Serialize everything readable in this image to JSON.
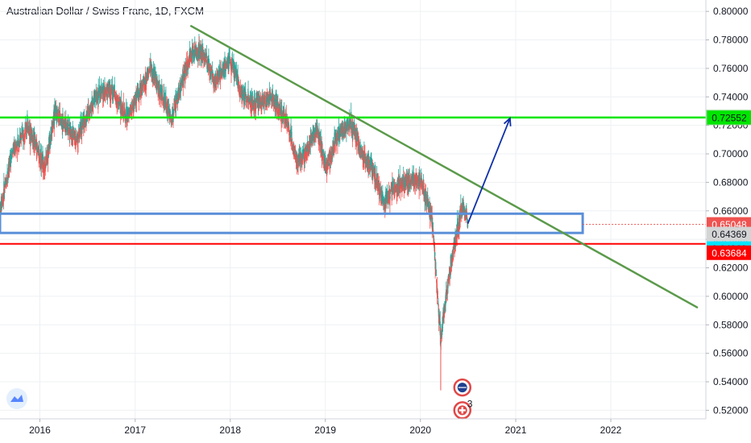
{
  "title": "Australian Dollar / Swiss Franc, 1D, FXCM",
  "colors": {
    "up": "#26a69a",
    "down": "#ef5350",
    "resistance": "#00e600",
    "support_blue": "#5b8fd9",
    "support_red": "#ff0000",
    "trendline": "#5b9a4a",
    "arrow": "#0d2fa8",
    "current_tag": "#ef5350",
    "grey_tag": "#d4d4d4",
    "cyan_tag": "#00e5ff"
  },
  "icons": [
    "tradingview-logo-icon",
    "australia-flag-icon",
    "swiss-flag-event-icon"
  ],
  "event_count": "3",
  "chart_data": {
    "type": "candlestick",
    "title": "Australian Dollar / Swiss Franc, 1D, FXCM",
    "x_axis": {
      "type": "date",
      "range": [
        "2015-08-01",
        "2023-01-01"
      ],
      "ticks": [
        "2016",
        "2017",
        "2018",
        "2019",
        "2020",
        "2021",
        "2022"
      ],
      "tick_dates": [
        "2016-01-01",
        "2017-01-01",
        "2018-01-01",
        "2019-01-01",
        "2020-01-01",
        "2021-01-01",
        "2022-01-01"
      ]
    },
    "y_axis": {
      "position": "right",
      "range": [
        0.514,
        0.808
      ],
      "ticks": [
        "0.80000",
        "0.78000",
        "0.76000",
        "0.74000",
        "0.72000",
        "0.70000",
        "0.68000",
        "0.66000",
        "0.64000",
        "0.62000",
        "0.60000",
        "0.58000",
        "0.56000",
        "0.54000",
        "0.52000"
      ],
      "tick_values": [
        0.8,
        0.78,
        0.76,
        0.74,
        0.72,
        0.7,
        0.68,
        0.66,
        0.64,
        0.62,
        0.6,
        0.58,
        0.56,
        0.54,
        0.52
      ]
    },
    "grid": true,
    "price_path": [
      [
        "2015-08-01",
        0.66
      ],
      [
        "2015-09-15",
        0.7
      ],
      [
        "2015-11-15",
        0.72
      ],
      [
        "2016-01-20",
        0.69
      ],
      [
        "2016-03-01",
        0.73
      ],
      [
        "2016-05-20",
        0.71
      ],
      [
        "2016-08-01",
        0.74
      ],
      [
        "2016-10-01",
        0.745
      ],
      [
        "2016-12-01",
        0.725
      ],
      [
        "2017-03-01",
        0.76
      ],
      [
        "2017-04-15",
        0.74
      ],
      [
        "2017-05-20",
        0.725
      ],
      [
        "2017-08-01",
        0.77
      ],
      [
        "2017-09-15",
        0.772
      ],
      [
        "2017-11-01",
        0.752
      ],
      [
        "2018-01-01",
        0.765
      ],
      [
        "2018-02-20",
        0.74
      ],
      [
        "2018-04-01",
        0.735
      ],
      [
        "2018-06-01",
        0.74
      ],
      [
        "2018-08-01",
        0.726
      ],
      [
        "2018-09-15",
        0.695
      ],
      [
        "2018-10-15",
        0.7
      ],
      [
        "2018-12-01",
        0.718
      ],
      [
        "2019-01-03",
        0.69
      ],
      [
        "2019-02-15",
        0.712
      ],
      [
        "2019-04-10",
        0.722
      ],
      [
        "2019-05-20",
        0.7
      ],
      [
        "2019-07-01",
        0.69
      ],
      [
        "2019-08-15",
        0.665
      ],
      [
        "2019-09-15",
        0.675
      ],
      [
        "2019-11-01",
        0.68
      ],
      [
        "2020-01-01",
        0.682
      ],
      [
        "2020-02-15",
        0.655
      ],
      [
        "2020-03-19",
        0.57
      ],
      [
        "2020-04-20",
        0.615
      ],
      [
        "2020-06-10",
        0.665
      ],
      [
        "2020-07-01",
        0.651
      ]
    ],
    "resistance_level": {
      "value": 0.72552,
      "label": "0.72552"
    },
    "support_zone": {
      "from": 0.6445,
      "to": 0.658,
      "start": "2015-08-01",
      "end": "2021-09-15"
    },
    "support_line": {
      "value": 0.63684,
      "label": "0.63684"
    },
    "trendline": {
      "start": [
        "2017-08-01",
        0.79
      ],
      "end": [
        "2022-12-01",
        0.592
      ]
    },
    "projection_arrow": {
      "start": [
        "2020-07-01",
        0.651
      ],
      "end": [
        "2020-12-10",
        0.725
      ]
    },
    "price_tags": [
      {
        "value": 0.65048,
        "label": "0.65048",
        "style": "current"
      },
      {
        "value": 0.64369,
        "label": "0.64369",
        "style": "grey"
      },
      {
        "value": 0.633,
        "label": "0.64369",
        "style": "cyan"
      },
      {
        "value": 0.631,
        "label": "0.63684",
        "style": "red"
      }
    ],
    "events": [
      {
        "date": "2020-06-10",
        "value": 0.536,
        "icon": "australia-flag-icon"
      },
      {
        "date": "2020-06-10",
        "value": 0.52,
        "icon": "swiss-flag-event-icon",
        "count": "3"
      }
    ]
  }
}
